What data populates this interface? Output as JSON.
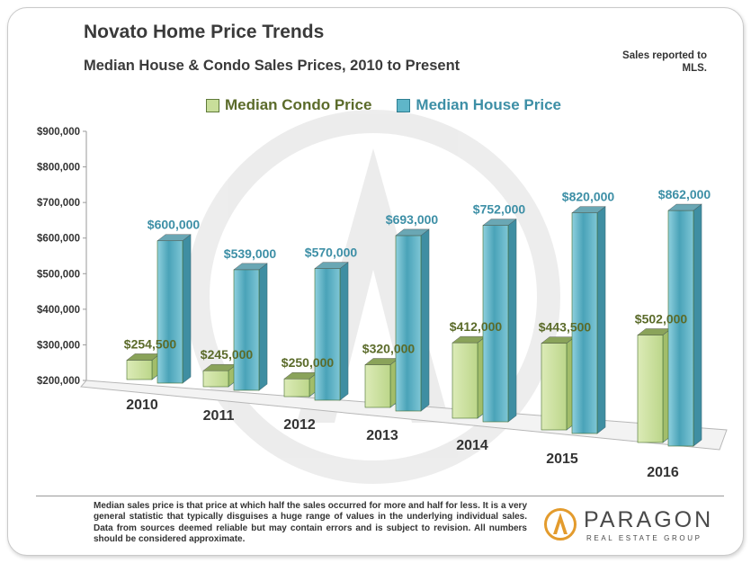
{
  "header": {
    "title": "Novato Home Price Trends",
    "subtitle": "Median House & Condo Sales Prices, 2010 to Present",
    "note": "Sales reported to MLS."
  },
  "legend": {
    "condo_label": "Median Condo Price",
    "house_label": "Median House Price"
  },
  "colors": {
    "condo": "#c8de9a",
    "house": "#5fb6c9",
    "condo_label": "#5b6b2a",
    "house_label": "#3d8fa6",
    "axis_text": "#333333"
  },
  "chart_data": {
    "type": "bar",
    "title": "",
    "categories": [
      "2010",
      "2011",
      "2012",
      "2013",
      "2014",
      "2015",
      "2016"
    ],
    "series": [
      {
        "name": "Median Condo Price",
        "values": [
          254500,
          245000,
          250000,
          320000,
          412000,
          443500,
          502000
        ],
        "labels": [
          "$254,500",
          "$245,000",
          "$250,000",
          "$320,000",
          "$412,000",
          "$443,500",
          "$502,000"
        ]
      },
      {
        "name": "Median House Price",
        "values": [
          600000,
          539000,
          570000,
          693000,
          752000,
          820000,
          862000
        ],
        "labels": [
          "$600,000",
          "$539,000",
          "$570,000",
          "$693,000",
          "$752,000",
          "$820,000",
          "$862,000"
        ]
      }
    ],
    "ylim": [
      200000,
      900000
    ],
    "yticks": [
      "$200,000",
      "$300,000",
      "$400,000",
      "$500,000",
      "$600,000",
      "$700,000",
      "$800,000",
      "$900,000"
    ],
    "xlabel": "",
    "ylabel": "",
    "legend_position": "top",
    "style": "3d"
  },
  "footer": {
    "footnote": "Median sales price is that price at which half the sales occurred for more and half for less. It is a very general statistic that typically disguises a huge range of values in the underlying individual sales. Data from sources deemed reliable but may contain errors and is subject to revision. All numbers should be considered approximate.",
    "brand_name": "PARAGON",
    "brand_tagline": "REAL ESTATE GROUP"
  }
}
